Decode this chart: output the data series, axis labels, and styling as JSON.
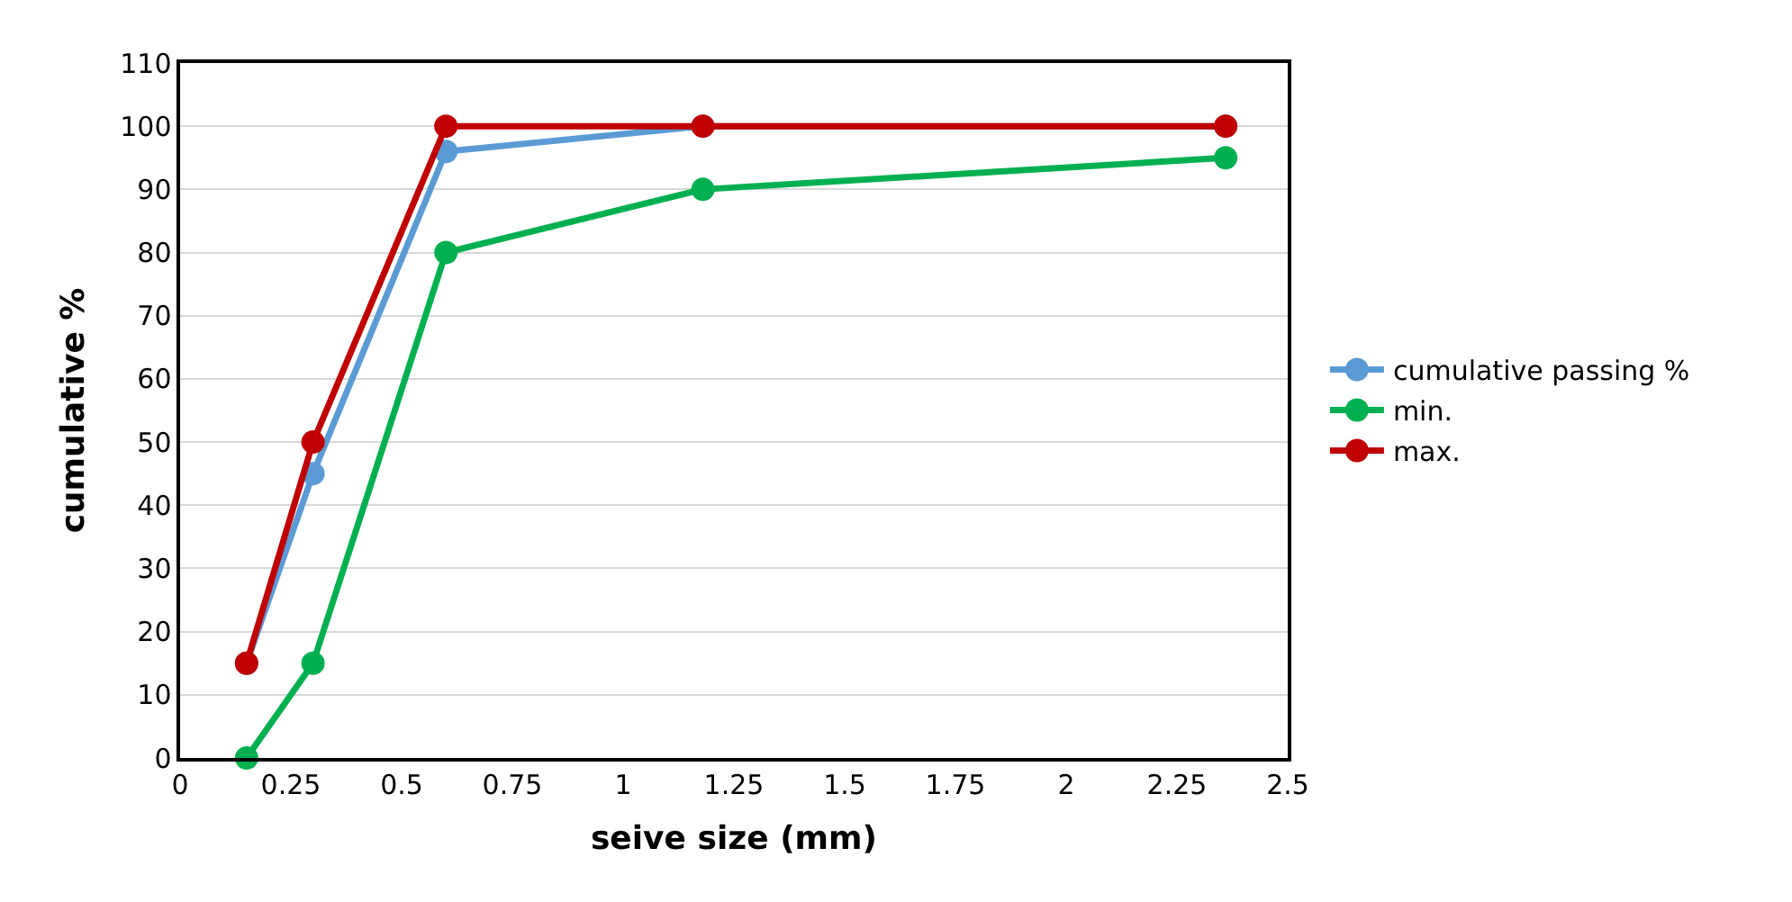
{
  "chart_data": {
    "type": "line",
    "xlabel": "seive size (mm)",
    "ylabel": "cumulative %",
    "x": [
      0.15,
      0.3,
      0.6,
      1.18,
      2.36
    ],
    "series": [
      {
        "name": "cumulative passing %",
        "color": "#5b9bd5",
        "values": [
          15,
          45,
          96,
          100,
          100
        ]
      },
      {
        "name": "min.",
        "color": "#00b050",
        "values": [
          0,
          15,
          80,
          90,
          95
        ]
      },
      {
        "name": "max.",
        "color": "#c00000",
        "values": [
          15,
          50,
          100,
          100,
          100
        ]
      }
    ],
    "xlim": [
      0,
      2.5
    ],
    "xticks": [
      0,
      0.25,
      0.5,
      0.75,
      1,
      1.25,
      1.5,
      1.75,
      2,
      2.25,
      2.5
    ],
    "ylim": [
      0,
      110
    ],
    "yticks": [
      0,
      10,
      20,
      30,
      40,
      50,
      60,
      70,
      80,
      90,
      100,
      110
    ],
    "grid": "y",
    "legend": "right",
    "marker": "circle",
    "line_style": "solid"
  }
}
